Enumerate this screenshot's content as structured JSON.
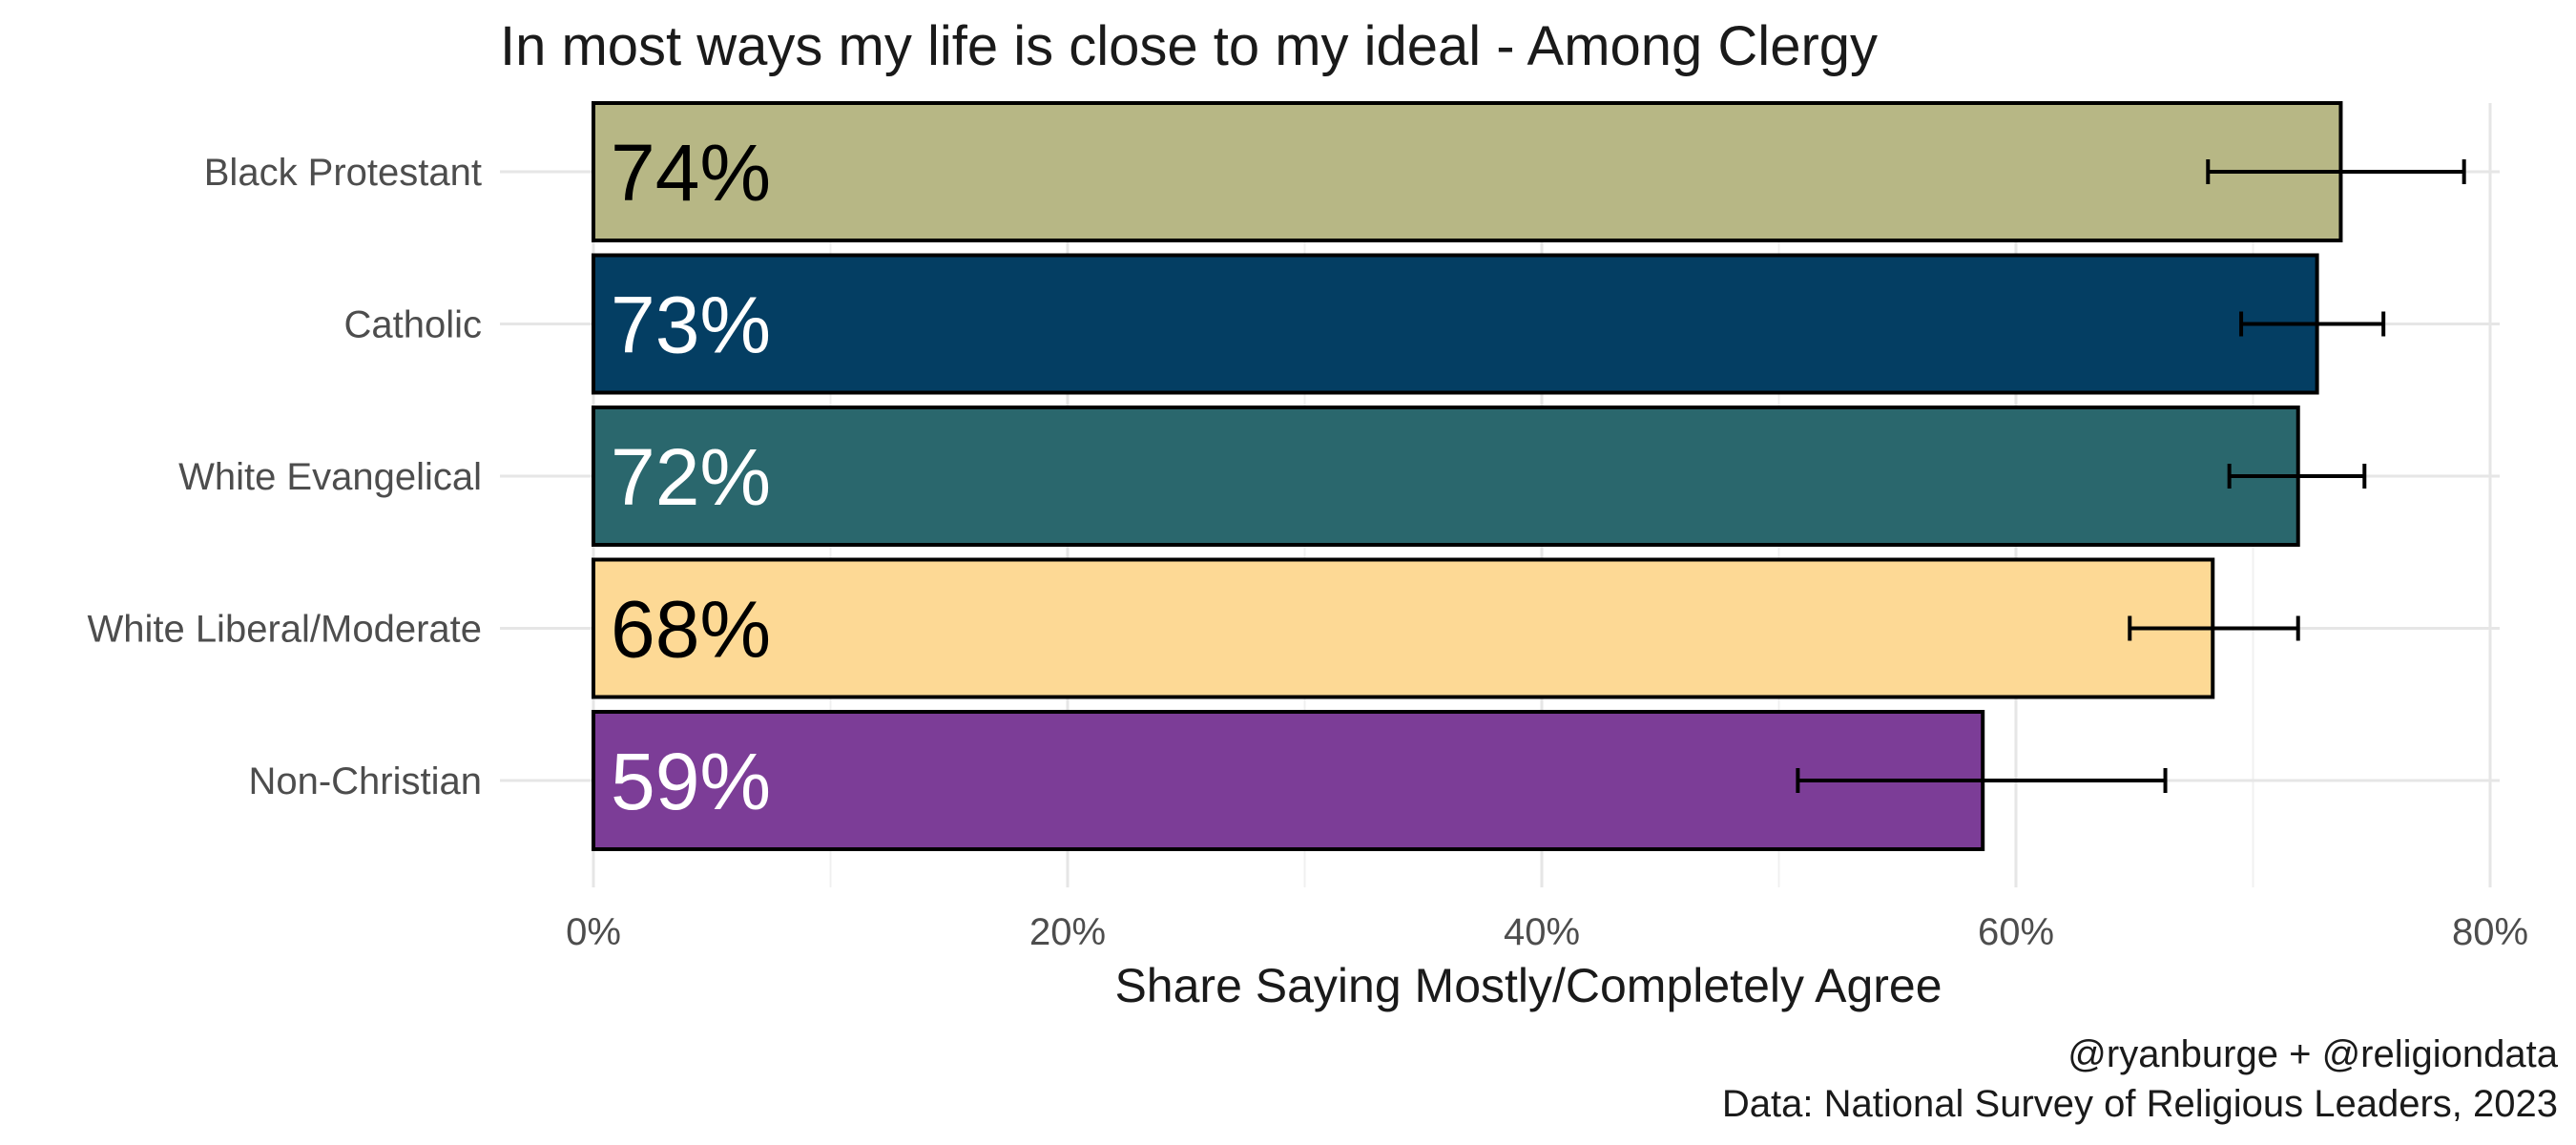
{
  "chart_data": {
    "type": "bar",
    "orientation": "horizontal",
    "title": "In most ways my life is close to my ideal - Among Clergy",
    "xlabel": "Share Saying Mostly/Completely Agree",
    "ylabel": "",
    "xlim": [
      0,
      0.8
    ],
    "x_ticks": [
      0,
      0.2,
      0.4,
      0.6,
      0.8
    ],
    "x_tick_labels": [
      "0%",
      "20%",
      "40%",
      "60%",
      "80%"
    ],
    "grid": true,
    "legend": "none",
    "categories": [
      "Black Protestant",
      "Catholic",
      "White Evangelical",
      "White Liberal/Moderate",
      "Non-Christian"
    ],
    "values": [
      0.737,
      0.727,
      0.719,
      0.683,
      0.586
    ],
    "value_labels": [
      "74%",
      "73%",
      "72%",
      "68%",
      "59%"
    ],
    "error_low": [
      0.681,
      0.695,
      0.69,
      0.648,
      0.508
    ],
    "error_high": [
      0.789,
      0.755,
      0.747,
      0.719,
      0.663
    ],
    "colors": [
      "#b7b785",
      "#043e63",
      "#2a676d",
      "#fdd995",
      "#7c3d97"
    ],
    "label_colors": [
      "#000000",
      "#ffffff",
      "#ffffff",
      "#000000",
      "#ffffff"
    ],
    "caption": [
      "@ryanburge + @religiondata",
      "Data: National Survey of Religious Leaders, 2023"
    ]
  }
}
